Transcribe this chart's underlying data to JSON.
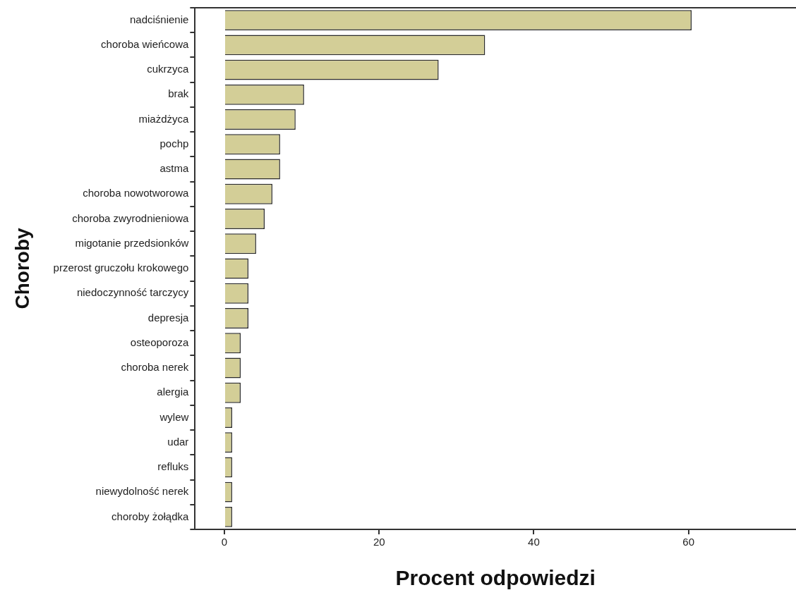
{
  "chart_data": {
    "type": "bar",
    "orientation": "horizontal",
    "xlabel": "Procent odpowiedzi",
    "ylabel": "Choroby",
    "categories": [
      "nadciśnienie",
      "choroba wieńcowa",
      "cukrzyca",
      "brak",
      "miażdżyca",
      "pochp",
      "astma",
      "choroba nowotworowa",
      "choroba zwyrodnieniowa",
      "migotanie przedsionków",
      "przerost gruczołu krokowego",
      "niedoczynność tarczycy",
      "depresja",
      "osteoporoza",
      "choroba nerek",
      "alergia",
      "wylew",
      "udar",
      "refluks",
      "niewydolność nerek",
      "choroby żołądka"
    ],
    "values": [
      60.4,
      33.7,
      27.7,
      10.3,
      9.2,
      7.2,
      7.2,
      6.2,
      5.2,
      4.1,
      3.1,
      3.1,
      3.1,
      2.1,
      2.1,
      2.1,
      1.0,
      1.0,
      1.0,
      1.0,
      1.0
    ],
    "color": "#d3ce97",
    "xlim": [
      -3.8,
      73.9
    ],
    "xticks": [
      0,
      20,
      40,
      60
    ],
    "grid": false,
    "legend": false
  }
}
